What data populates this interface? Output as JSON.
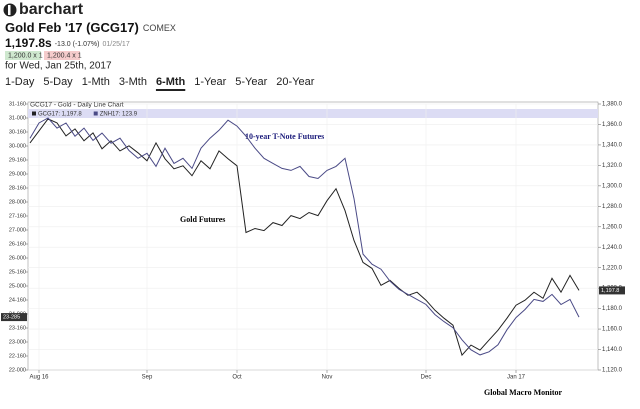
{
  "header": {
    "logo": "barchart",
    "title": "Gold Feb '17 (GCG17)",
    "exchange": "COMEX",
    "price": "1,197.8s",
    "change": "-13.0 (-1.07%)",
    "date": "01/25/17",
    "bid": "1,200.0 x 1",
    "ask": "1,200.4 x 1",
    "for_date": "for Wed, Jan 25th, 2017"
  },
  "tabs": [
    "1-Day",
    "5-Day",
    "1-Mth",
    "3-Mth",
    "6-Mth",
    "1-Year",
    "5-Year",
    "20-Year"
  ],
  "selected_tab": "6-Mth",
  "chart_data": {
    "type": "line",
    "title": "GCG17 - Gold - Daily Line Chart",
    "categories": [
      null,
      "Aug 16",
      null,
      null,
      null,
      null,
      null,
      null,
      null,
      null,
      null,
      null,
      null,
      "Sep",
      null,
      null,
      null,
      null,
      null,
      null,
      null,
      null,
      null,
      "Oct",
      null,
      null,
      null,
      null,
      null,
      null,
      null,
      null,
      null,
      "Nov",
      null,
      null,
      null,
      null,
      null,
      null,
      null,
      null,
      null,
      null,
      "Dec",
      null,
      null,
      null,
      null,
      null,
      null,
      null,
      null,
      null,
      "Jan 17",
      null,
      null,
      null,
      null,
      null,
      null,
      null
    ],
    "series": [
      {
        "name": "GCG17: 1,197.8",
        "color": "#222222",
        "axis": "y2",
        "current_label": "1,197.8",
        "values": [
          1342.0,
          1353.7,
          1365.4,
          1361.5,
          1348.8,
          1355.7,
          1344.0,
          1351.8,
          1336.2,
          1344.0,
          1334.2,
          1339.1,
          1332.3,
          1324.5,
          1342.0,
          1326.4,
          1316.7,
          1319.6,
          1309.9,
          1324.5,
          1316.7,
          1334.2,
          1326.4,
          1319.6,
          1254.4,
          1258.3,
          1256.3,
          1264.1,
          1261.2,
          1270.9,
          1268.0,
          1273.9,
          1270.9,
          1285.5,
          1297.2,
          1275.8,
          1246.6,
          1225.2,
          1219.3,
          1202.8,
          1207.6,
          1199.8,
          1193.0,
          1196.0,
          1188.2,
          1178.4,
          1170.6,
          1163.8,
          1134.6,
          1144.3,
          1139.5,
          1149.2,
          1158.9,
          1170.6,
          1183.3,
          1188.2,
          1196.0,
          1190.1,
          1209.6,
          1196.0,
          1212.5,
          1197.8
        ]
      },
      {
        "name": "ZNH17: 123.9",
        "color": "#4a4a86",
        "current_label": "23-285",
        "values": [
          30.28,
          30.82,
          31.0,
          30.64,
          30.82,
          30.35,
          30.64,
          30.2,
          30.46,
          30.1,
          30.28,
          29.84,
          29.56,
          29.74,
          29.27,
          29.92,
          29.38,
          29.56,
          29.2,
          29.92,
          30.28,
          30.56,
          30.92,
          30.71,
          30.35,
          29.92,
          29.56,
          29.38,
          29.2,
          29.13,
          29.27,
          28.91,
          28.84,
          29.13,
          29.27,
          29.56,
          28.12,
          26.14,
          25.78,
          25.6,
          25.17,
          24.88,
          24.7,
          24.52,
          24.34,
          23.98,
          23.73,
          23.51,
          23.08,
          22.72,
          22.54,
          22.65,
          22.9,
          23.44,
          23.87,
          24.16,
          24.52,
          24.45,
          24.7,
          24.34,
          24.52,
          23.89
        ]
      }
    ],
    "ylim": [
      22,
      31.5
    ],
    "yticks": [
      {
        "value": 22,
        "label": "22-000"
      },
      {
        "value": 22.5,
        "label": "22-160"
      },
      {
        "value": 23,
        "label": "23-000"
      },
      {
        "value": 23.5,
        "label": "23-160"
      },
      {
        "value": 24,
        "label": "24-000"
      },
      {
        "value": 24.5,
        "label": "24-160"
      },
      {
        "value": 25,
        "label": "25-000"
      },
      {
        "value": 25.5,
        "label": "25-160"
      },
      {
        "value": 26,
        "label": "26-000"
      },
      {
        "value": 26.5,
        "label": "26-160"
      },
      {
        "value": 27,
        "label": "27-000"
      },
      {
        "value": 27.5,
        "label": "27-160"
      },
      {
        "value": 28,
        "label": "28-000"
      },
      {
        "value": 28.5,
        "label": "28-160"
      },
      {
        "value": 29,
        "label": "29-000"
      },
      {
        "value": 29.5,
        "label": "29-160"
      },
      {
        "value": 30,
        "label": "30-000"
      },
      {
        "value": 30.5,
        "label": "30-160"
      },
      {
        "value": 31,
        "label": "31-000"
      },
      {
        "value": 31.5,
        "label": "31-160"
      }
    ],
    "y2lim": [
      1120,
      1380
    ],
    "y2ticks": [
      {
        "value": 1120,
        "label": "1,120.0"
      },
      {
        "value": 1140,
        "label": "1,140.0"
      },
      {
        "value": 1160,
        "label": "1,160.0"
      },
      {
        "value": 1180,
        "label": "1,180.0"
      },
      {
        "value": 1200,
        "label": "1,200.0"
      },
      {
        "value": 1220,
        "label": "1,220.0"
      },
      {
        "value": 1240,
        "label": "1,240.0"
      },
      {
        "value": 1260,
        "label": "1,260.0"
      },
      {
        "value": 1280,
        "label": "1,280.0"
      },
      {
        "value": 1300,
        "label": "1,300.0"
      },
      {
        "value": 1320,
        "label": "1,320.0"
      },
      {
        "value": 1340,
        "label": "1,340.0"
      },
      {
        "value": 1360,
        "label": "1,360.0"
      },
      {
        "value": 1380,
        "label": "1,380.0"
      }
    ],
    "grid": true,
    "annotations": [
      {
        "text": "10-year T-Note Futures",
        "color": "#1a1a7a"
      },
      {
        "text": "Gold Futures",
        "color": "#000000"
      }
    ],
    "credit": "Global Macro Monitor"
  }
}
